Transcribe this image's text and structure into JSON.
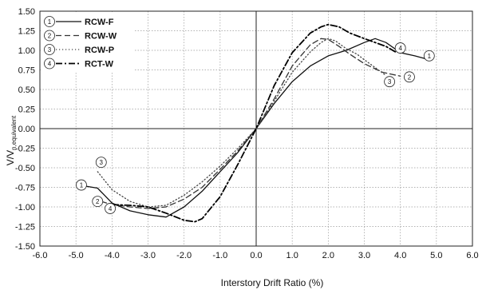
{
  "chart_data": {
    "type": "line",
    "xlabel": "Interstory Drift Ratio (%)",
    "ylabel": {
      "main": "V/V",
      "sub": "n,equivalent"
    },
    "xlim": [
      -6.0,
      6.0
    ],
    "ylim": [
      -1.5,
      1.5
    ],
    "xticks": [
      -6.0,
      -5.0,
      -4.0,
      -3.0,
      -2.0,
      -1.0,
      0.0,
      1.0,
      2.0,
      3.0,
      4.0,
      5.0,
      6.0
    ],
    "xtick_labels": [
      "-6.0",
      "-5.0",
      "-4.0",
      "-3.0",
      "-2.0",
      "-1.0",
      "0.0",
      "1.0",
      "2.0",
      "3.0",
      "4.0",
      "5.0",
      "6.0"
    ],
    "yticks": [
      1.5,
      1.25,
      1.0,
      0.75,
      0.5,
      0.25,
      0.0,
      -0.25,
      -0.5,
      -0.75,
      -1.0,
      -1.25,
      -1.5
    ],
    "ytick_labels": [
      "1.50",
      "1.25",
      "1.00",
      "0.75",
      "0.50",
      "0.25",
      "0.00",
      "-0.25",
      "-0.50",
      "-0.75",
      "-1.00",
      "-1.25",
      "-1.50"
    ],
    "grid": true,
    "legend_position": "top-left",
    "series": [
      {
        "name": "RCW-F",
        "marker": "1",
        "style": "solid",
        "color": "#111111",
        "x": [
          -4.8,
          -4.4,
          -4.0,
          -3.5,
          -3.0,
          -2.5,
          -2.0,
          -1.5,
          -1.0,
          -0.5,
          0.0,
          0.5,
          1.0,
          1.5,
          2.0,
          2.5,
          3.0,
          3.3,
          3.6,
          4.0,
          4.4,
          4.8
        ],
        "y": [
          -0.73,
          -0.76,
          -0.95,
          -1.05,
          -1.1,
          -1.13,
          -1.0,
          -0.8,
          -0.55,
          -0.3,
          0.0,
          0.32,
          0.6,
          0.8,
          0.93,
          1.0,
          1.1,
          1.15,
          1.1,
          0.97,
          0.93,
          0.88
        ]
      },
      {
        "name": "RCW-W",
        "marker": "2",
        "style": "dashed",
        "color": "#333333",
        "x": [
          -4.3,
          -4.0,
          -3.5,
          -3.0,
          -2.5,
          -2.0,
          -1.5,
          -1.0,
          -0.5,
          0.0,
          0.5,
          1.0,
          1.5,
          1.8,
          2.0,
          2.3,
          2.6,
          3.0,
          3.5,
          4.0
        ],
        "y": [
          -0.93,
          -0.97,
          -1.0,
          -1.02,
          -1.0,
          -0.9,
          -0.75,
          -0.52,
          -0.28,
          0.0,
          0.38,
          0.8,
          1.07,
          1.15,
          1.14,
          1.05,
          0.95,
          0.83,
          0.72,
          0.67
        ]
      },
      {
        "name": "RCW-P",
        "marker": "3",
        "style": "dotted",
        "color": "#444444",
        "x": [
          -4.4,
          -4.0,
          -3.5,
          -3.0,
          -2.5,
          -2.0,
          -1.5,
          -1.0,
          -0.5,
          0.0,
          0.5,
          1.0,
          1.5,
          1.8,
          2.0,
          2.2,
          2.5,
          2.8,
          3.0,
          3.3,
          3.6
        ],
        "y": [
          -0.55,
          -0.78,
          -0.93,
          -1.0,
          -0.98,
          -0.85,
          -0.68,
          -0.48,
          -0.25,
          0.0,
          0.35,
          0.72,
          0.98,
          1.1,
          1.15,
          1.12,
          1.02,
          0.95,
          0.88,
          0.78,
          0.68
        ]
      },
      {
        "name": "RCT-W",
        "marker": "4",
        "style": "dashdot",
        "color": "#000000",
        "x": [
          -4.0,
          -3.5,
          -3.0,
          -2.5,
          -2.0,
          -1.7,
          -1.5,
          -1.0,
          -0.5,
          0.0,
          0.5,
          1.0,
          1.5,
          1.8,
          2.0,
          2.3,
          2.6,
          3.0,
          3.3,
          3.6,
          3.9
        ],
        "y": [
          -0.97,
          -0.98,
          -1.0,
          -1.08,
          -1.17,
          -1.19,
          -1.15,
          -0.87,
          -0.45,
          0.0,
          0.55,
          0.97,
          1.22,
          1.3,
          1.33,
          1.3,
          1.22,
          1.15,
          1.1,
          1.05,
          0.97
        ]
      }
    ],
    "markers": [
      {
        "label": "1",
        "x": -4.85,
        "y": -0.72
      },
      {
        "label": "2",
        "x": -4.4,
        "y": -0.93
      },
      {
        "label": "3",
        "x": -4.3,
        "y": -0.43
      },
      {
        "label": "4",
        "x": -4.05,
        "y": -1.02
      },
      {
        "label": "1",
        "x": 4.8,
        "y": 0.93
      },
      {
        "label": "2",
        "x": 4.25,
        "y": 0.66
      },
      {
        "label": "3",
        "x": 3.7,
        "y": 0.6
      },
      {
        "label": "4",
        "x": 4.0,
        "y": 1.03
      }
    ]
  }
}
